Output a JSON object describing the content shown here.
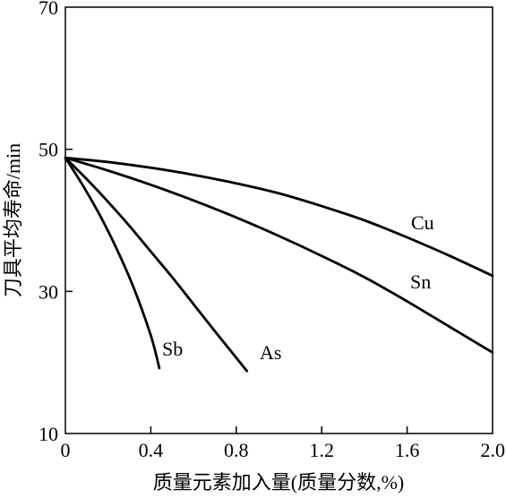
{
  "chart_data": {
    "type": "line",
    "title": "",
    "xlabel": "质量元素加入量(质量分数,%)",
    "ylabel": "刀具平均寿命/min",
    "xlim": [
      0,
      2.0
    ],
    "ylim": [
      10,
      70
    ],
    "xticks": [
      0,
      0.4,
      0.8,
      1.2,
      1.6,
      2.0
    ],
    "xtick_labels": [
      "0",
      "0.4",
      "0.8",
      "1.2",
      "1.6",
      "2.0"
    ],
    "yticks": [
      10,
      30,
      50,
      70
    ],
    "ytick_labels": [
      "10",
      "30",
      "50",
      "70"
    ],
    "grid": false,
    "legend": "none",
    "series": [
      {
        "name": "Cu",
        "x": [
          0,
          0.2,
          0.4,
          0.6,
          0.8,
          1.0,
          1.2,
          1.4,
          1.6,
          1.8,
          2.0
        ],
        "y": [
          48.8,
          48.2,
          47.4,
          46.4,
          45.2,
          43.8,
          42.0,
          40.0,
          37.6,
          35.0,
          32.2
        ]
      },
      {
        "name": "Sn",
        "x": [
          0,
          0.2,
          0.4,
          0.6,
          0.8,
          1.0,
          1.2,
          1.4,
          1.6,
          1.8,
          2.0
        ],
        "y": [
          48.8,
          47.0,
          45.0,
          42.8,
          40.4,
          37.8,
          35.0,
          32.0,
          28.6,
          25.0,
          21.4
        ]
      },
      {
        "name": "As",
        "x": [
          0,
          0.1,
          0.2,
          0.3,
          0.4,
          0.5,
          0.6,
          0.7,
          0.85
        ],
        "y": [
          48.8,
          45.8,
          42.6,
          39.2,
          35.6,
          32.0,
          28.2,
          24.4,
          18.8
        ]
      },
      {
        "name": "Sb",
        "x": [
          0,
          0.08,
          0.16,
          0.24,
          0.32,
          0.4,
          0.44
        ],
        "y": [
          48.8,
          45.0,
          40.8,
          36.0,
          30.5,
          23.8,
          19.2
        ]
      }
    ]
  }
}
